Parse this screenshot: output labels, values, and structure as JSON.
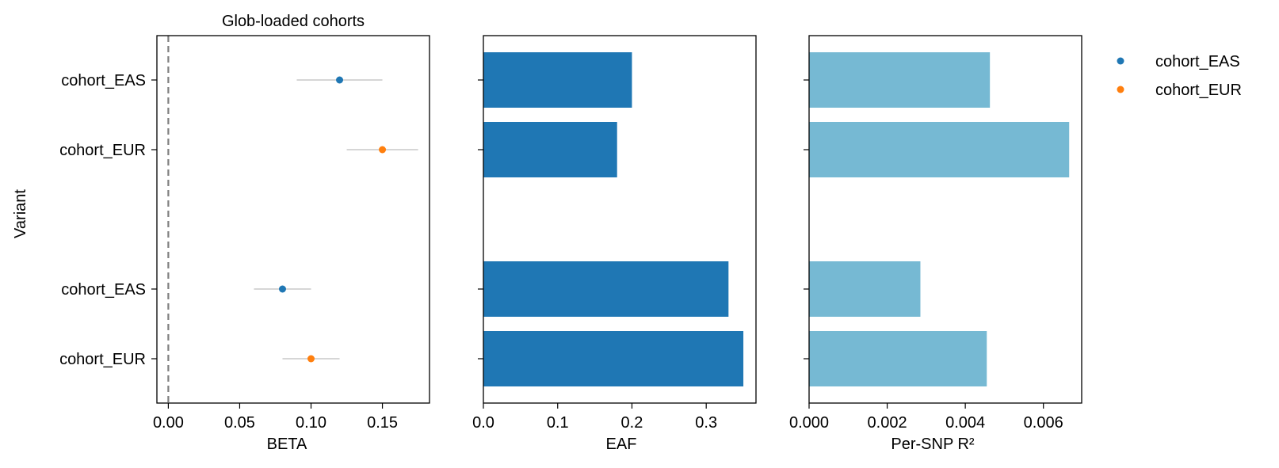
{
  "chart_data": [
    {
      "type": "scatter",
      "title": "Glob-loaded cohorts",
      "xlabel": "BETA",
      "ylabel": "Variant",
      "xlim": [
        -0.008,
        0.183
      ],
      "xticks": [
        0.0,
        0.05,
        0.1,
        0.15
      ],
      "xtick_labels": [
        "0.00",
        "0.05",
        "0.10",
        "0.15"
      ],
      "categories": [
        "cohort_EAS",
        "cohort_EUR",
        "cohort_EAS",
        "cohort_EUR"
      ],
      "reference_line": {
        "x": 0,
        "style": "dashed",
        "color": "#7f7f7f"
      },
      "points": [
        {
          "row": 0,
          "label": "cohort_EAS",
          "beta": 0.12,
          "ci": [
            0.09,
            0.15
          ],
          "series": "cohort_EAS"
        },
        {
          "row": 1,
          "label": "cohort_EUR",
          "beta": 0.15,
          "ci": [
            0.125,
            0.175
          ],
          "series": "cohort_EUR"
        },
        {
          "row": 3,
          "label": "cohort_EAS",
          "beta": 0.08,
          "ci": [
            0.06,
            0.1
          ],
          "series": "cohort_EAS"
        },
        {
          "row": 4,
          "label": "cohort_EUR",
          "beta": 0.1,
          "ci": [
            0.08,
            0.12
          ],
          "series": "cohort_EUR"
        }
      ]
    },
    {
      "type": "bar",
      "orientation": "horizontal",
      "xlabel": "EAF",
      "xlim": [
        0,
        0.367
      ],
      "xticks": [
        0.0,
        0.1,
        0.2,
        0.3
      ],
      "xtick_labels": [
        "0.0",
        "0.1",
        "0.2",
        "0.3"
      ],
      "color": "#1f77b4",
      "bars": [
        {
          "row": 0,
          "value": 0.2
        },
        {
          "row": 1,
          "value": 0.18
        },
        {
          "row": 3,
          "value": 0.33
        },
        {
          "row": 4,
          "value": 0.35
        }
      ]
    },
    {
      "type": "bar",
      "orientation": "horizontal",
      "xlabel": "Per-SNP R²",
      "xlim": [
        0,
        0.00698
      ],
      "xticks": [
        0.0,
        0.002,
        0.004,
        0.006
      ],
      "xtick_labels": [
        "0.000",
        "0.002",
        "0.004",
        "0.006"
      ],
      "color": "#76b9d3",
      "bars": [
        {
          "row": 0,
          "value": 0.00463
        },
        {
          "row": 1,
          "value": 0.00666
        },
        {
          "row": 3,
          "value": 0.00285
        },
        {
          "row": 4,
          "value": 0.00455
        }
      ]
    }
  ],
  "legend": {
    "placement": "outside-right",
    "entries": [
      {
        "label": "cohort_EAS",
        "color": "#1f77b4"
      },
      {
        "label": "cohort_EUR",
        "color": "#ff7f0e"
      }
    ]
  },
  "colors": {
    "cohort_EAS": "#1f77b4",
    "cohort_EUR": "#ff7f0e",
    "ci_line": "#c8c8c8",
    "reference": "#7f7f7f"
  }
}
